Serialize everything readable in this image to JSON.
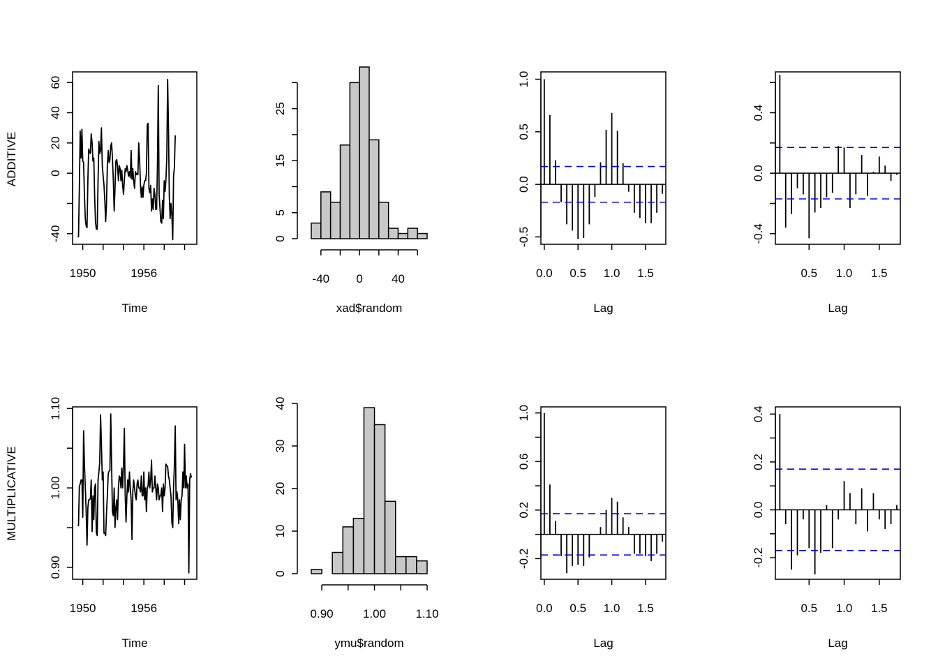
{
  "figure": {
    "row_labels": [
      "ADDITIVE",
      "MULTIPLICATIVE"
    ],
    "colors": {
      "line": "#000000",
      "bar_fill": "#c8c8c8",
      "ci_line": "#0000ff",
      "background": "#ffffff"
    }
  },
  "chart_data": [
    {
      "id": "additive-timeseries",
      "type": "line",
      "title": "",
      "xlabel": "Time",
      "ylabel": "ADDITIVE",
      "xlim": [
        1949.0,
        1961.2
      ],
      "ylim": [
        -47,
        67
      ],
      "xticks": [
        1950,
        1952,
        1954,
        1956,
        1958,
        1960
      ],
      "xtick_labels": [
        "1950",
        "",
        "",
        "1956",
        "",
        ""
      ],
      "yticks": [
        -40,
        -20,
        0,
        20,
        40,
        60
      ],
      "ytick_labels": [
        "-40",
        "",
        "0",
        "20",
        "40",
        "60"
      ],
      "start": 1949.5,
      "frequency": 12,
      "values": [
        -42,
        -42,
        -10,
        28,
        10,
        29,
        8,
        7,
        -15,
        -30,
        -35,
        -36,
        -5,
        16,
        14,
        13,
        26,
        20,
        8,
        10,
        -15,
        -32,
        -37,
        -37,
        -5,
        21,
        13,
        15,
        30,
        5,
        -2,
        -8,
        -18,
        -32,
        -20,
        5,
        15,
        7,
        9,
        18,
        20,
        10,
        -5,
        -25,
        -10,
        8,
        9,
        5,
        -5,
        5,
        3,
        -5,
        2,
        -8,
        -14,
        -4,
        3,
        1,
        5,
        2,
        -2,
        1,
        -3,
        15,
        -4,
        3,
        -5,
        -10,
        1,
        -1,
        0,
        -1,
        20,
        8,
        -8,
        -16,
        -9,
        -16,
        -8,
        -5,
        -5,
        0,
        32,
        33,
        -10,
        -13,
        -8,
        -25,
        -17,
        -24,
        -10,
        -14,
        -24,
        -24,
        5,
        58,
        -14,
        -23,
        -32,
        -33,
        -18,
        -30,
        -5,
        -12,
        -5,
        10,
        62,
        30,
        -15,
        -30,
        -20,
        -28,
        -44,
        -2,
        4,
        25
      ]
    },
    {
      "id": "additive-histogram",
      "type": "bar",
      "title": "",
      "xlabel": "xad$random",
      "ylabel": "",
      "bin_edges": [
        -50,
        -40,
        -30,
        -20,
        -10,
        0,
        10,
        20,
        30,
        40,
        50,
        60,
        70
      ],
      "counts": [
        3,
        9,
        7,
        18,
        30,
        33,
        19,
        7,
        2,
        1,
        2,
        1
      ],
      "xlim": [
        -50,
        70
      ],
      "ylim": [
        0,
        33
      ],
      "xticks": [
        -40,
        -20,
        0,
        20,
        40,
        60
      ],
      "xtick_labels": [
        "-40",
        "",
        "0",
        "",
        "40",
        ""
      ],
      "yticks": [
        0,
        5,
        10,
        15,
        20,
        25,
        30
      ],
      "ytick_labels": [
        "0",
        "5",
        "",
        "15",
        "",
        "25",
        ""
      ]
    },
    {
      "id": "additive-acf",
      "type": "bar",
      "title": "",
      "xlabel": "Lag",
      "ylabel": "",
      "lag_step": 0.08333,
      "lag_start": 0,
      "values": [
        1.0,
        0.66,
        0.23,
        -0.17,
        -0.38,
        -0.44,
        -0.52,
        -0.51,
        -0.38,
        -0.12,
        0.21,
        0.52,
        0.68,
        0.51,
        0.2,
        -0.07,
        -0.27,
        -0.32,
        -0.37,
        -0.37,
        -0.27,
        -0.09
      ],
      "ci": 0.17,
      "xlim": [
        -0.05,
        1.8
      ],
      "ylim": [
        -0.57,
        1.07
      ],
      "xticks": [
        0,
        0.5,
        1.0,
        1.5
      ],
      "xtick_labels": [
        "0.0",
        "0.5",
        "1.0",
        "1.5"
      ],
      "yticks": [
        -0.5,
        0,
        0.5,
        1.0
      ],
      "ytick_labels": [
        "-0.5",
        "0.0",
        "0.5",
        "1.0"
      ]
    },
    {
      "id": "additive-pacf",
      "type": "bar",
      "title": "",
      "xlabel": "Lag",
      "ylabel": "",
      "lag_step": 0.08333,
      "lag_start": 0.08333,
      "values": [
        0.65,
        -0.36,
        -0.27,
        -0.1,
        -0.14,
        -0.43,
        -0.26,
        -0.23,
        -0.16,
        -0.13,
        0.18,
        0.17,
        -0.23,
        -0.14,
        0.12,
        -0.15,
        0.01,
        0.11,
        0.05,
        -0.05,
        -0.01
      ],
      "ci": 0.17,
      "xlim": [
        0.02,
        1.8
      ],
      "ylim": [
        -0.47,
        0.67
      ],
      "xticks": [
        0.5,
        1.0,
        1.5
      ],
      "xtick_labels": [
        "0.5",
        "1.0",
        "1.5"
      ],
      "yticks": [
        -0.4,
        -0.2,
        0,
        0.2,
        0.4,
        0.6
      ],
      "ytick_labels": [
        "-0.4",
        "",
        "0.0",
        "",
        "0.4",
        ""
      ]
    },
    {
      "id": "multiplicative-timeseries",
      "type": "line",
      "title": "",
      "xlabel": "Time",
      "ylabel": "MULTIPLICATIVE",
      "xlim": [
        1949.0,
        1961.2
      ],
      "ylim": [
        0.885,
        1.102
      ],
      "xticks": [
        1950,
        1952,
        1954,
        1956,
        1958,
        1960
      ],
      "xtick_labels": [
        "1950",
        "",
        "",
        "1956",
        "",
        ""
      ],
      "yticks": [
        0.9,
        0.95,
        1.0,
        1.05,
        1.1
      ],
      "ytick_labels": [
        "0.90",
        "",
        "1.00",
        "",
        "1.10"
      ],
      "start": 1949.5,
      "frequency": 12,
      "values": [
        0.952,
        0.953,
        1.002,
        1.005,
        1.01,
        1.01,
        0.963,
        1.072,
        1.03,
        1.001,
        0.97,
        0.928,
        0.975,
        0.985,
        0.985,
        0.987,
        1.01,
        0.945,
        0.99,
        0.96,
        1.0,
        1.005,
        0.944,
        0.94,
        1.01,
        1.02,
        1.032,
        1.092,
        1.056,
        1.01,
        1.02,
        0.943,
        0.943,
        0.94,
        0.968,
        0.99,
        1.018,
        1.021,
        1.022,
        1.093,
        1.03,
        0.97,
        0.965,
        1.0,
        0.95,
        0.975,
        0.985,
        0.96,
        1.0,
        1.015,
        1.013,
        1.0,
        1.025,
        1.0,
        1.03,
        1.075,
        0.99,
        0.957,
        0.99,
        1.01,
        0.995,
        1.02,
        1.0,
        0.985,
        0.935,
        0.995,
        1.01,
        1.0,
        0.99,
        0.985,
        1.005,
        1.01,
        1.0,
        1.0,
        0.995,
        1.015,
        0.99,
        0.99,
        1.02,
        0.985,
        1.0,
        0.97,
        1.0,
        1.003,
        1.02,
        1.0,
        1.01,
        1.035,
        0.995,
        1.0,
        1.0,
        1.015,
        1.0,
        0.985,
        1.005,
        1.0,
        0.985,
        0.99,
        0.99,
        1.0,
        0.97,
        1.005,
        0.99,
        1.0,
        1.03,
        1.028,
        1.027,
        1.015,
        1.01,
        1.0,
        0.99,
        0.956,
        0.95,
        1.0,
        1.03,
        1.078,
        0.985,
        0.995,
        0.985,
        0.955,
        0.985,
        0.96,
        0.985,
        0.99,
        1.02,
        1.0,
        1.055,
        1.0,
        1.015,
        1.0,
        1.005,
        0.893,
        1.01,
        1.018,
        1.013
      ]
    },
    {
      "id": "multiplicative-histogram",
      "type": "bar",
      "title": "",
      "xlabel": "ymu$random",
      "ylabel": "",
      "bin_edges": [
        0.88,
        0.9,
        0.92,
        0.94,
        0.96,
        0.98,
        1.0,
        1.02,
        1.04,
        1.06,
        1.08,
        1.1
      ],
      "counts": [
        1,
        0,
        5,
        11,
        13,
        39,
        35,
        17,
        4,
        4,
        3
      ],
      "xlim": [
        0.88,
        1.1
      ],
      "ylim": [
        0,
        40
      ],
      "xticks": [
        0.9,
        0.95,
        1.0,
        1.05,
        1.1
      ],
      "xtick_labels": [
        "0.90",
        "",
        "1.00",
        "",
        "1.10"
      ],
      "yticks": [
        0,
        10,
        20,
        30,
        40
      ],
      "ytick_labels": [
        "0",
        "10",
        "20",
        "30",
        "40"
      ]
    },
    {
      "id": "multiplicative-acf",
      "type": "bar",
      "title": "",
      "xlabel": "Lag",
      "ylabel": "",
      "lag_step": 0.08333,
      "lag_start": 0,
      "values": [
        1.0,
        0.41,
        0.11,
        -0.18,
        -0.32,
        -0.26,
        -0.25,
        -0.26,
        -0.19,
        0.0,
        0.06,
        0.2,
        0.3,
        0.27,
        0.14,
        0.06,
        -0.16,
        -0.16,
        -0.18,
        -0.22,
        -0.16,
        -0.06
      ],
      "ci": 0.17,
      "xlim": [
        -0.05,
        1.8
      ],
      "ylim": [
        -0.37,
        1.05
      ],
      "xticks": [
        0,
        0.5,
        1.0,
        1.5
      ],
      "xtick_labels": [
        "0.0",
        "0.5",
        "1.0",
        "1.5"
      ],
      "yticks": [
        -0.2,
        0,
        0.2,
        0.4,
        0.6,
        0.8,
        1.0
      ],
      "ytick_labels": [
        "-0.2",
        "",
        "0.2",
        "",
        "0.6",
        "",
        "1.0"
      ]
    },
    {
      "id": "multiplicative-pacf",
      "type": "bar",
      "title": "",
      "xlabel": "Lag",
      "ylabel": "",
      "lag_step": 0.08333,
      "lag_start": 0.08333,
      "values": [
        0.4,
        -0.06,
        -0.25,
        -0.19,
        -0.04,
        -0.16,
        -0.27,
        -0.18,
        0.02,
        -0.16,
        -0.04,
        0.12,
        0.07,
        -0.06,
        0.09,
        -0.09,
        0.07,
        -0.04,
        -0.08,
        -0.06,
        0.02
      ],
      "ci": 0.17,
      "xlim": [
        0.02,
        1.8
      ],
      "ylim": [
        -0.29,
        0.43
      ],
      "xticks": [
        0.5,
        1.0,
        1.5
      ],
      "xtick_labels": [
        "0.5",
        "1.0",
        "1.5"
      ],
      "yticks": [
        -0.2,
        -0.1,
        0,
        0.1,
        0.2,
        0.3,
        0.4
      ],
      "ytick_labels": [
        "-0.2",
        "",
        "0.0",
        "",
        "0.2",
        "",
        "0.4"
      ]
    }
  ]
}
